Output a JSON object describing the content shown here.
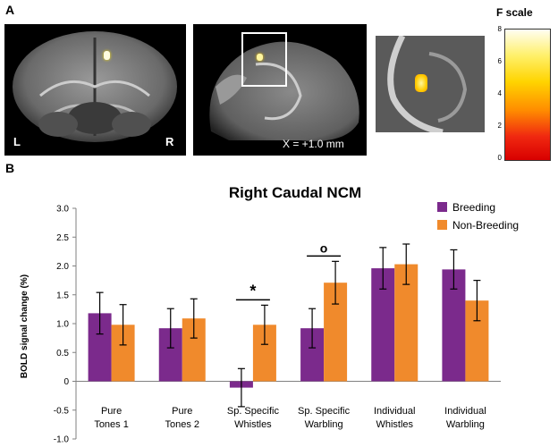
{
  "panel_a": {
    "label": "A",
    "left_hemisphere": "L",
    "right_hemisphere": "R",
    "coordinate": "X = +1.0 mm",
    "f_scale_title": "F scale",
    "f_scale_ticks": [
      "8",
      "6",
      "4",
      "2",
      "0"
    ]
  },
  "panel_b": {
    "label": "B"
  },
  "chart_data": {
    "type": "bar",
    "title": "Right Caudal NCM",
    "xlabel": "",
    "ylabel": "BOLD signal change (%)",
    "ylim": [
      -1.0,
      3.0
    ],
    "yticks": [
      "3.0",
      "2.5",
      "2.0",
      "1.5",
      "1.0",
      "0.5",
      "0",
      "-0.5",
      "-1.0"
    ],
    "categories": [
      [
        "Pure",
        "Tones 1"
      ],
      [
        "Pure",
        "Tones 2"
      ],
      [
        "Sp. Specific",
        "Whistles"
      ],
      [
        "Sp. Specific",
        "Warbling"
      ],
      [
        "Individual",
        "Whistles"
      ],
      [
        "Individual",
        "Warbling"
      ]
    ],
    "series": [
      {
        "name": "Breeding",
        "color": "#7b2a8c",
        "values": [
          1.18,
          0.92,
          -0.11,
          0.92,
          1.96,
          1.94
        ],
        "errors": [
          0.36,
          0.34,
          0.33,
          0.34,
          0.36,
          0.34
        ]
      },
      {
        "name": "Non-Breeding",
        "color": "#f08a2c",
        "values": [
          0.98,
          1.09,
          0.98,
          1.71,
          2.03,
          1.4
        ],
        "errors": [
          0.35,
          0.34,
          0.34,
          0.37,
          0.35,
          0.35
        ]
      }
    ],
    "annotations": [
      {
        "category_index": 2,
        "symbol": "*"
      },
      {
        "category_index": 3,
        "symbol": "o"
      }
    ],
    "legend_position": "top-right"
  }
}
